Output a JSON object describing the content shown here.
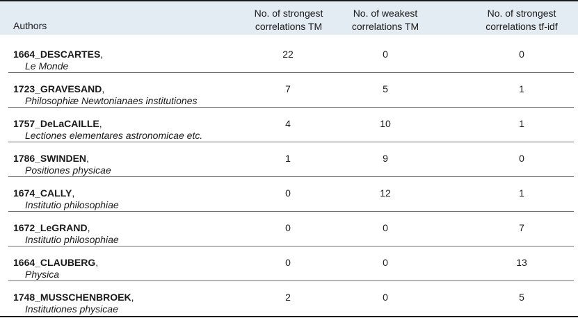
{
  "table": {
    "headers": {
      "authors": "Authors",
      "col1": [
        "No. of strongest",
        "correlations TM"
      ],
      "col2": [
        "No. of weakest",
        "correlations TM"
      ],
      "col3": [
        "No. of strongest",
        "correlations tf-idf"
      ]
    },
    "rows": [
      {
        "author": "1664_DESCARTES",
        "work": "Le Monde",
        "strongest_tm": "22",
        "weakest_tm": "0",
        "strongest_tfidf": "0"
      },
      {
        "author": "1723_GRAVESAND",
        "work": "Philosophiæ Newtonianaes institutiones",
        "strongest_tm": "7",
        "weakest_tm": "5",
        "strongest_tfidf": "1"
      },
      {
        "author": "1757_DeLaCAILLE",
        "work": "Lectiones elementares astronomicae etc.",
        "strongest_tm": "4",
        "weakest_tm": "10",
        "strongest_tfidf": "1"
      },
      {
        "author": "1786_SWINDEN",
        "work": "Positiones physicae",
        "strongest_tm": "1",
        "weakest_tm": "9",
        "strongest_tfidf": "0"
      },
      {
        "author": "1674_CALLY",
        "work": "Institutio philosophiae",
        "strongest_tm": "0",
        "weakest_tm": "12",
        "strongest_tfidf": "1"
      },
      {
        "author": "1672_LeGRAND",
        "work": "Institutio philosophiae",
        "strongest_tm": "0",
        "weakest_tm": "0",
        "strongest_tfidf": "7"
      },
      {
        "author": "1664_CLAUBERG",
        "work": "Physica",
        "strongest_tm": "0",
        "weakest_tm": "0",
        "strongest_tfidf": "13"
      },
      {
        "author": "1748_MUSSCHENBROEK",
        "work": "Institutiones physicae",
        "strongest_tm": "2",
        "weakest_tm": "0",
        "strongest_tfidf": "5"
      }
    ]
  },
  "colors": {
    "header_background": "#e3ebf3",
    "rule": "#1a1a1a",
    "row_separator": "#6c6c6c"
  }
}
